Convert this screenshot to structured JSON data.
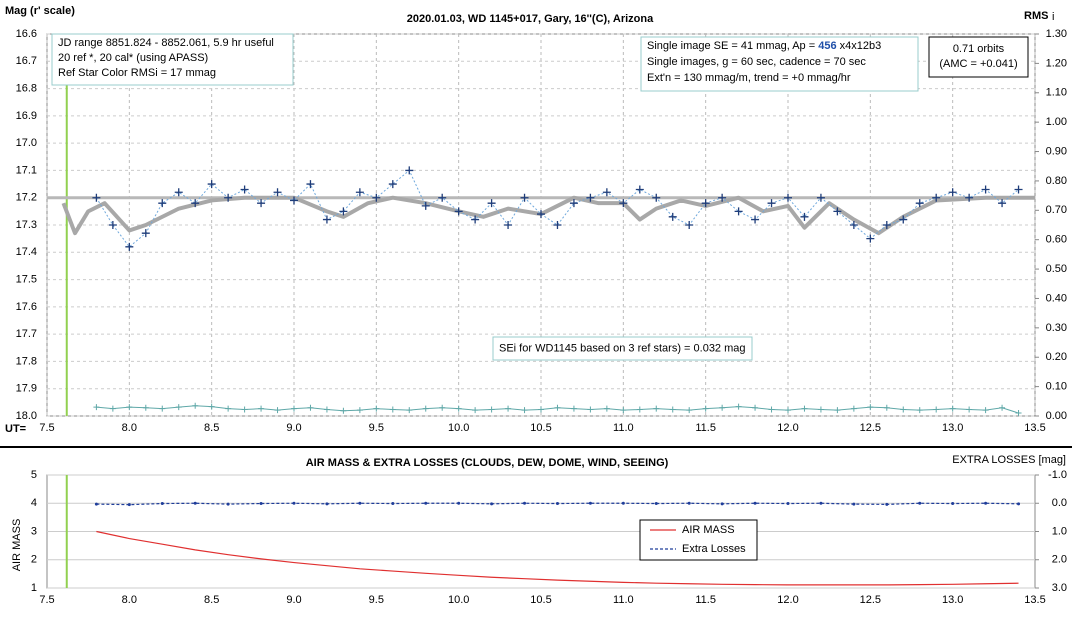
{
  "chart_data": [
    {
      "type": "scatter",
      "title": "2020.01.03, WD 1145+017, Gary, 16''(C), Arizona",
      "y_label": "Mag (r' scale)",
      "y2_label": "RMS",
      "y2_label_sub": "i",
      "x_label": "UT=",
      "xlim": [
        7.5,
        13.5
      ],
      "xticks": [
        7.5,
        {
          "value": 8,
          "label": "8.0"
        },
        8.5,
        {
          "value": 9,
          "label": "9.0"
        },
        9.5,
        {
          "value": 10,
          "label": "10.0"
        },
        10.5,
        {
          "value": 11,
          "label": "11.0"
        },
        11.5,
        {
          "value": 12,
          "label": "12.0"
        },
        12.5,
        {
          "value": 13,
          "label": "13.0"
        },
        13.5
      ],
      "ylim": [
        16.6,
        18.0
      ],
      "y_inverted": true,
      "yticks": [
        16.6,
        16.7,
        16.8,
        16.9,
        {
          "value": 17,
          "label": "17.0"
        },
        17.1,
        17.2,
        17.3,
        17.4,
        17.5,
        17.6,
        17.7,
        17.8,
        17.9,
        {
          "value": 18,
          "label": "18.0"
        }
      ],
      "y2lim": [
        0,
        1.3
      ],
      "y2ticks": [
        {
          "value": 0,
          "label": "0.00"
        },
        {
          "value": 0.1,
          "label": "0.10"
        },
        {
          "value": 0.2,
          "label": "0.20"
        },
        {
          "value": 0.3,
          "label": "0.30"
        },
        {
          "value": 0.4,
          "label": "0.40"
        },
        {
          "value": 0.5,
          "label": "0.50"
        },
        {
          "value": 0.6,
          "label": "0.60"
        },
        {
          "value": 0.7,
          "label": "0.70"
        },
        {
          "value": 0.8,
          "label": "0.80"
        },
        {
          "value": 0.9,
          "label": "0.90"
        },
        {
          "value": 1,
          "label": "1.00"
        },
        {
          "value": 1.1,
          "label": "1.10"
        },
        {
          "value": 1.2,
          "label": "1.20"
        },
        {
          "value": 1.3,
          "label": "1.30"
        }
      ],
      "grid": "xy",
      "marker_x": 7.62,
      "marker_color": "#92d050",
      "reference_level": 17.2,
      "reference_color": "#b8b8b8",
      "points": {
        "color": "#1f3d7a",
        "line_color": "#6fa8dc",
        "x": [
          7.8,
          7.9,
          8.0,
          8.1,
          8.2,
          8.3,
          8.4,
          8.5,
          8.6,
          8.7,
          8.8,
          8.9,
          9.0,
          9.1,
          9.2,
          9.3,
          9.4,
          9.5,
          9.6,
          9.7,
          9.8,
          9.9,
          10.0,
          10.1,
          10.2,
          10.3,
          10.4,
          10.5,
          10.6,
          10.7,
          10.8,
          10.9,
          11.0,
          11.1,
          11.2,
          11.3,
          11.4,
          11.5,
          11.6,
          11.7,
          11.8,
          11.9,
          12.0,
          12.1,
          12.2,
          12.3,
          12.4,
          12.5,
          12.6,
          12.7,
          12.8,
          12.9,
          13.0,
          13.1,
          13.2,
          13.3,
          13.4
        ],
        "values": [
          17.2,
          17.3,
          17.38,
          17.33,
          17.22,
          17.18,
          17.22,
          17.15,
          17.2,
          17.17,
          17.22,
          17.18,
          17.21,
          17.15,
          17.28,
          17.25,
          17.18,
          17.2,
          17.15,
          17.1,
          17.23,
          17.2,
          17.25,
          17.28,
          17.22,
          17.3,
          17.2,
          17.26,
          17.3,
          17.22,
          17.2,
          17.18,
          17.22,
          17.17,
          17.2,
          17.27,
          17.3,
          17.22,
          17.2,
          17.25,
          17.28,
          17.22,
          17.2,
          17.27,
          17.2,
          17.25,
          17.3,
          17.35,
          17.3,
          17.28,
          17.22,
          17.2,
          17.18,
          17.2,
          17.17,
          17.22,
          17.17
        ]
      },
      "model": {
        "color": "#a8a8a8",
        "x": [
          7.6,
          7.67,
          7.75,
          7.85,
          8.0,
          8.1,
          8.3,
          8.5,
          8.7,
          9.0,
          9.2,
          9.3,
          9.45,
          9.6,
          9.8,
          10.0,
          10.15,
          10.3,
          10.5,
          10.7,
          10.85,
          11.0,
          11.1,
          11.2,
          11.35,
          11.5,
          11.7,
          11.85,
          12.0,
          12.1,
          12.25,
          12.4,
          12.55,
          12.7,
          12.9,
          13.2,
          13.5
        ],
        "values": [
          17.22,
          17.33,
          17.25,
          17.22,
          17.32,
          17.3,
          17.24,
          17.21,
          17.2,
          17.2,
          17.25,
          17.27,
          17.22,
          17.2,
          17.22,
          17.25,
          17.27,
          17.24,
          17.26,
          17.2,
          17.22,
          17.22,
          17.28,
          17.24,
          17.21,
          17.23,
          17.2,
          17.25,
          17.23,
          17.31,
          17.22,
          17.28,
          17.33,
          17.27,
          17.21,
          17.2,
          17.2
        ]
      },
      "rms": {
        "axis": "y2",
        "color": "#5fa8a8",
        "values": [
          0.03,
          0.025,
          0.03,
          0.028,
          0.025,
          0.03,
          0.035,
          0.032,
          0.025,
          0.022,
          0.025,
          0.02,
          0.025,
          0.028,
          0.022,
          0.018,
          0.02,
          0.025,
          0.022,
          0.02,
          0.025,
          0.028,
          0.025,
          0.02,
          0.022,
          0.025,
          0.02,
          0.022,
          0.028,
          0.025,
          0.022,
          0.025,
          0.02,
          0.022,
          0.025,
          0.022,
          0.02,
          0.025,
          0.028,
          0.032,
          0.028,
          0.022,
          0.02,
          0.025,
          0.022,
          0.02,
          0.025,
          0.03,
          0.028,
          0.022,
          0.02,
          0.022,
          0.025,
          0.022,
          0.02,
          0.028,
          0.01
        ]
      },
      "annotations": [
        {
          "lines": [
            "JD range 8851.824 - 8852.061, 5.9 hr useful",
            "20 ref *, 20 cal* (using APASS)",
            "Ref Star Color RMSi = 17 mmag"
          ]
        },
        {
          "lines": [
            [
              "Single image SE = 41 mmag, Ap = ",
              "456",
              " x4x12b3"
            ],
            "Single images, g = 60 sec, cadence = 70 sec",
            "Ext'n = 130 mmag/m, trend = +0 mmag/hr"
          ],
          "highlight_color": "#1f4fa8"
        },
        {
          "lines": [
            "0.71 orbits",
            "(AMC = +0.041)"
          ]
        },
        {
          "lines": [
            "SEi for WD1145 based on 3 ref stars) = 0.032 mag"
          ]
        }
      ]
    },
    {
      "type": "line",
      "title": "AIR MASS & EXTRA LOSSES (CLOUDS, DEW, DOME, WIND, SEEING)",
      "y_label": "AIR MASS",
      "y2_label": "EXTRA LOSSES [mag]",
      "xlim": [
        7.5,
        13.5
      ],
      "xticks": [
        7.5,
        {
          "value": 8,
          "label": "8.0"
        },
        8.5,
        {
          "value": 9,
          "label": "9.0"
        },
        9.5,
        {
          "value": 10,
          "label": "10.0"
        },
        10.5,
        {
          "value": 11,
          "label": "11.0"
        },
        11.5,
        {
          "value": 12,
          "label": "12.0"
        },
        12.5,
        {
          "value": 13,
          "label": "13.0"
        },
        13.5
      ],
      "ylim": [
        1,
        5
      ],
      "yticks": [
        1,
        2,
        3,
        4,
        5
      ],
      "y2lim": [
        -1,
        3
      ],
      "y2_inverted": true,
      "y2ticks": [
        {
          "value": -1,
          "label": "-1.0"
        },
        {
          "value": 0,
          "label": "0.0"
        },
        {
          "value": 1,
          "label": "1.0"
        },
        {
          "value": 2,
          "label": "2.0"
        },
        {
          "value": 3,
          "label": "3.0"
        }
      ],
      "grid": "y",
      "marker_x": 7.62,
      "marker_color": "#92d050",
      "x": [
        7.8,
        8.0,
        8.2,
        8.4,
        8.6,
        8.8,
        9.0,
        9.2,
        9.4,
        9.6,
        9.8,
        10.0,
        10.2,
        10.4,
        10.6,
        10.8,
        11.0,
        11.2,
        11.4,
        11.6,
        11.8,
        12.0,
        12.2,
        12.4,
        12.6,
        12.8,
        13.0,
        13.2,
        13.4
      ],
      "series": [
        {
          "name": "AIR MASS",
          "color": "#e03030",
          "values": [
            3.0,
            2.75,
            2.55,
            2.35,
            2.18,
            2.03,
            1.9,
            1.79,
            1.68,
            1.6,
            1.52,
            1.45,
            1.38,
            1.33,
            1.28,
            1.24,
            1.2,
            1.17,
            1.15,
            1.13,
            1.12,
            1.11,
            1.11,
            1.11,
            1.11,
            1.12,
            1.13,
            1.15,
            1.17
          ]
        },
        {
          "name": "Extra Losses",
          "color": "#1f3d9a",
          "axis": "y2",
          "dashed": true,
          "values": [
            0.03,
            0.05,
            0.01,
            0.0,
            0.03,
            0.01,
            0.0,
            0.02,
            0.0,
            0.01,
            0.0,
            0.0,
            0.02,
            0.0,
            0.01,
            0.0,
            0.0,
            0.01,
            0.0,
            0.02,
            0.0,
            0.01,
            0.0,
            0.03,
            0.04,
            0.0,
            0.01,
            0.0,
            0.02
          ]
        }
      ]
    }
  ]
}
